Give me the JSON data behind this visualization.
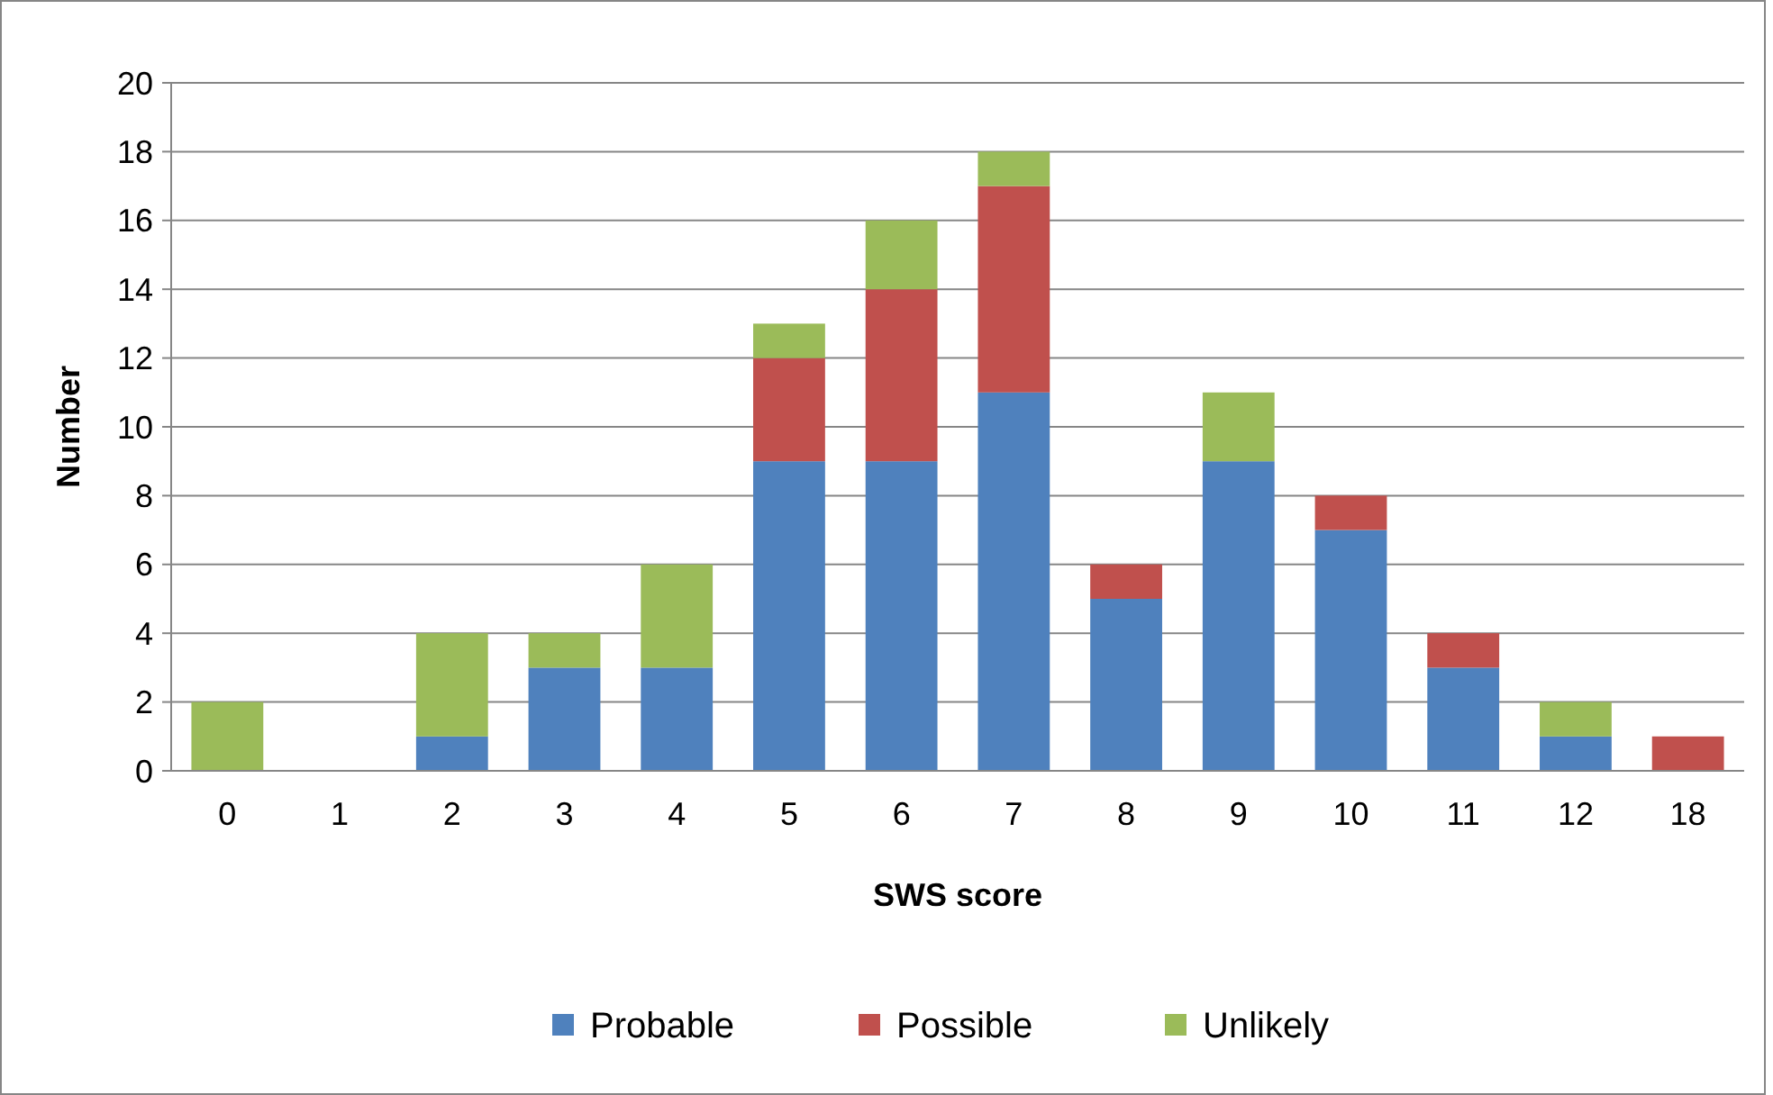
{
  "chart_data": {
    "type": "bar",
    "stacked": true,
    "xlabel": "SWS score",
    "ylabel": "Number",
    "categories": [
      "0",
      "1",
      "2",
      "3",
      "4",
      "5",
      "6",
      "7",
      "8",
      "9",
      "10",
      "11",
      "12",
      "18"
    ],
    "series": [
      {
        "name": "Probable",
        "color": "#4f81bd",
        "values": [
          0,
          0,
          1,
          3,
          3,
          9,
          9,
          11,
          5,
          9,
          7,
          3,
          1,
          0
        ]
      },
      {
        "name": "Possible",
        "color": "#c0504d",
        "values": [
          0,
          0,
          0,
          0,
          0,
          3,
          5,
          6,
          1,
          0,
          1,
          1,
          0,
          1
        ]
      },
      {
        "name": "Unlikely",
        "color": "#9bbb59",
        "values": [
          2,
          0,
          3,
          1,
          3,
          1,
          2,
          1,
          0,
          2,
          0,
          0,
          1,
          0
        ]
      }
    ],
    "ylim": [
      0,
      20
    ],
    "yticks": [
      0,
      2,
      4,
      6,
      8,
      10,
      12,
      14,
      16,
      18,
      20
    ],
    "grid": "y",
    "legend": "bottom"
  }
}
